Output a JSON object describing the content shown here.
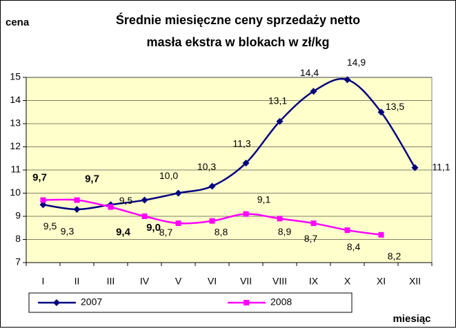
{
  "chart_data": {
    "type": "line",
    "title": "Średnie miesięczne ceny sprzedaży netto",
    "subtitle": "masła ekstra w blokach w zł/kg",
    "y_label": "cena",
    "x_label": "miesiąc",
    "categories": [
      "I",
      "II",
      "III",
      "IV",
      "V",
      "VI",
      "VII",
      "VIII",
      "IX",
      "X",
      "XI",
      "XII"
    ],
    "series": [
      {
        "name": "2007",
        "color": "#000080",
        "marker": "diamond",
        "values": [
          9.5,
          9.3,
          9.5,
          9.7,
          10.0,
          10.3,
          11.3,
          13.1,
          14.4,
          14.9,
          13.5,
          11.1
        ],
        "value_labels": [
          "9,5",
          "9,3",
          "9,5",
          null,
          "10,0",
          "10,3",
          "11,3",
          "13,1",
          "14,4",
          "14,9",
          "13,5",
          "11,1"
        ]
      },
      {
        "name": "2008",
        "color": "#ff00ff",
        "marker": "square",
        "values": [
          9.7,
          9.7,
          9.4,
          9.0,
          8.7,
          8.8,
          9.1,
          8.9,
          8.7,
          8.4,
          8.2,
          null
        ],
        "value_labels": [
          "9,7",
          "9,7",
          "9,4",
          "9,0",
          "8,7",
          "8,8",
          "9,1",
          "8,9",
          "8,7",
          "8,4",
          "8,2",
          null
        ]
      }
    ],
    "ylim": [
      7,
      15
    ],
    "yticks": [
      7,
      8,
      9,
      10,
      11,
      12,
      13,
      14,
      15
    ],
    "grid": true,
    "plot_background": "#ffffcc",
    "legend": "bottom"
  }
}
